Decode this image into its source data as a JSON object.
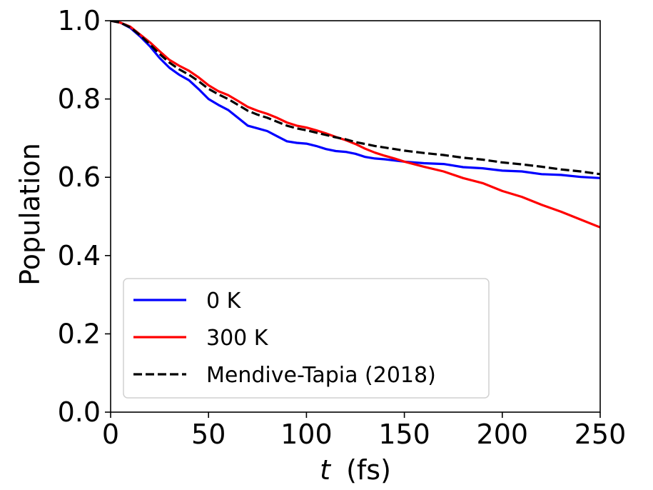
{
  "chart_data": {
    "type": "line",
    "title": "",
    "xlabel_var": "t",
    "xlabel_unit": "(fs)",
    "ylabel": "Population",
    "xlim": [
      0,
      250
    ],
    "ylim": [
      0.0,
      1.0
    ],
    "xticks": [
      0,
      50,
      100,
      150,
      200,
      250
    ],
    "xtick_labels": [
      "0",
      "50",
      "100",
      "150",
      "200",
      "250"
    ],
    "yticks": [
      0.0,
      0.2,
      0.4,
      0.6,
      0.8,
      1.0
    ],
    "ytick_labels": [
      "0.0",
      "0.2",
      "0.4",
      "0.6",
      "0.8",
      "1.0"
    ],
    "grid": false,
    "legend_position": "lower-left",
    "series": [
      {
        "name": "0 K",
        "color": "#0000ff",
        "style": "solid",
        "x": [
          0,
          5,
          10,
          15,
          20,
          25,
          30,
          35,
          40,
          45,
          50,
          55,
          60,
          65,
          70,
          75,
          80,
          85,
          90,
          95,
          100,
          105,
          110,
          115,
          120,
          125,
          130,
          135,
          140,
          145,
          150,
          160,
          170,
          180,
          190,
          200,
          210,
          220,
          230,
          240,
          250
        ],
        "y": [
          1.0,
          0.995,
          0.982,
          0.96,
          0.935,
          0.905,
          0.88,
          0.862,
          0.848,
          0.825,
          0.8,
          0.785,
          0.772,
          0.752,
          0.732,
          0.725,
          0.718,
          0.705,
          0.692,
          0.688,
          0.686,
          0.68,
          0.672,
          0.667,
          0.665,
          0.66,
          0.652,
          0.648,
          0.646,
          0.643,
          0.64,
          0.636,
          0.634,
          0.626,
          0.623,
          0.617,
          0.615,
          0.608,
          0.606,
          0.601,
          0.598
        ]
      },
      {
        "name": "300 K",
        "color": "#ff0000",
        "style": "solid",
        "x": [
          0,
          5,
          10,
          15,
          20,
          25,
          30,
          35,
          40,
          45,
          50,
          55,
          60,
          65,
          70,
          75,
          80,
          85,
          90,
          95,
          100,
          105,
          110,
          115,
          120,
          125,
          130,
          135,
          140,
          145,
          150,
          160,
          170,
          180,
          190,
          200,
          210,
          220,
          230,
          240,
          250
        ],
        "y": [
          1.0,
          0.995,
          0.985,
          0.965,
          0.945,
          0.922,
          0.9,
          0.885,
          0.872,
          0.855,
          0.835,
          0.82,
          0.81,
          0.795,
          0.78,
          0.77,
          0.762,
          0.752,
          0.74,
          0.732,
          0.727,
          0.72,
          0.712,
          0.703,
          0.695,
          0.685,
          0.673,
          0.663,
          0.655,
          0.648,
          0.64,
          0.627,
          0.615,
          0.598,
          0.585,
          0.565,
          0.55,
          0.53,
          0.512,
          0.492,
          0.472
        ]
      },
      {
        "name": "Mendive-Tapia (2018)",
        "color": "#000000",
        "style": "dashed",
        "x": [
          0,
          5,
          10,
          15,
          20,
          25,
          30,
          35,
          40,
          45,
          50,
          55,
          60,
          65,
          70,
          75,
          80,
          85,
          90,
          95,
          100,
          105,
          110,
          115,
          120,
          125,
          130,
          135,
          140,
          145,
          150,
          160,
          170,
          180,
          190,
          200,
          210,
          220,
          230,
          240,
          250
        ],
        "y": [
          1.0,
          0.995,
          0.983,
          0.963,
          0.94,
          0.915,
          0.893,
          0.876,
          0.862,
          0.845,
          0.826,
          0.812,
          0.8,
          0.785,
          0.77,
          0.76,
          0.752,
          0.742,
          0.732,
          0.725,
          0.72,
          0.714,
          0.708,
          0.702,
          0.697,
          0.69,
          0.685,
          0.68,
          0.676,
          0.672,
          0.668,
          0.662,
          0.657,
          0.65,
          0.645,
          0.638,
          0.633,
          0.627,
          0.62,
          0.615,
          0.608
        ]
      }
    ]
  }
}
